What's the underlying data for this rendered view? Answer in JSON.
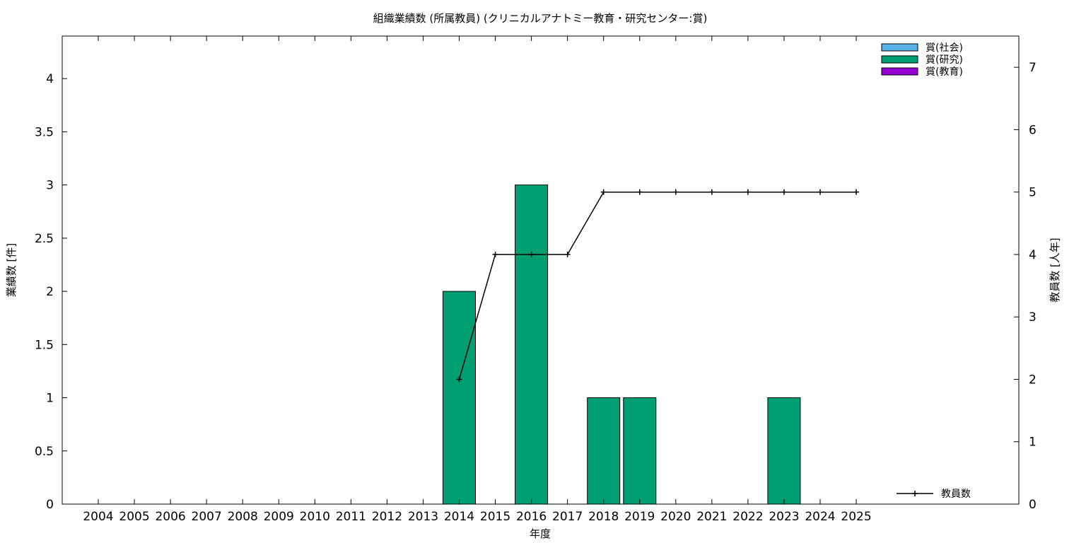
{
  "chart_data": {
    "type": "bar",
    "title": "組織業績数 (所属教員) (クリニカルアナトミー教育・研究センター:賞)",
    "xlabel": "年度",
    "ylabel": "業績数 [件]",
    "y2label": "教員数 [人年]",
    "categories": [
      "2004",
      "2005",
      "2006",
      "2007",
      "2008",
      "2009",
      "2010",
      "2011",
      "2012",
      "2013",
      "2014",
      "2015",
      "2016",
      "2017",
      "2018",
      "2019",
      "2020",
      "2021",
      "2022",
      "2023",
      "2024",
      "2025"
    ],
    "ylim": [
      0,
      4.4
    ],
    "y_ticks": [
      "0",
      "0.5",
      "1",
      "1.5",
      "2",
      "2.5",
      "3",
      "3.5",
      "4"
    ],
    "y2lim": [
      0,
      7.5
    ],
    "y2_ticks": [
      "0",
      "1",
      "2",
      "3",
      "4",
      "5",
      "6",
      "7"
    ],
    "series": [
      {
        "name": "賞(社会)",
        "color": "#56b4e9",
        "values": [
          0,
          0,
          0,
          0,
          0,
          0,
          0,
          0,
          0,
          0,
          0,
          0,
          0,
          0,
          0,
          0,
          0,
          0,
          0,
          0,
          0,
          0
        ]
      },
      {
        "name": "賞(研究)",
        "color": "#009e73",
        "values": [
          0,
          0,
          0,
          0,
          0,
          0,
          0,
          0,
          0,
          0,
          2,
          0,
          3,
          0,
          1,
          1,
          0,
          0,
          0,
          1,
          0,
          0
        ]
      },
      {
        "name": "賞(教育)",
        "color": "#9400d3",
        "values": [
          0,
          0,
          0,
          0,
          0,
          0,
          0,
          0,
          0,
          0,
          0,
          0,
          0,
          0,
          0,
          0,
          0,
          0,
          0,
          0,
          0,
          0
        ]
      }
    ],
    "line_series": {
      "name": "教員数",
      "color": "#000000",
      "x": [
        "2014",
        "2015",
        "2016",
        "2017",
        "2018",
        "2019",
        "2020",
        "2021",
        "2022",
        "2023",
        "2024",
        "2025"
      ],
      "values": [
        2,
        4,
        4,
        4,
        5,
        5,
        5,
        5,
        5,
        5,
        5,
        5
      ]
    },
    "legend_position": "top-right",
    "grid": false
  }
}
